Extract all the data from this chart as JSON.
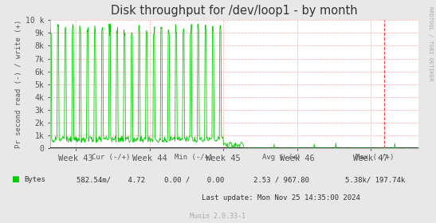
{
  "title": "Disk throughput for /dev/loop1 - by month",
  "ylabel": "Pr second read (-) / write (+)",
  "xlabel_ticks": [
    "Week 43",
    "Week 44",
    "Week 45",
    "Week 46",
    "Week 47"
  ],
  "xlabel_tick_positions": [
    0.07,
    0.27,
    0.47,
    0.67,
    0.87
  ],
  "ylim": [
    0,
    10000
  ],
  "ytick_vals": [
    0,
    1000,
    2000,
    3000,
    4000,
    5000,
    6000,
    7000,
    8000,
    9000,
    10000
  ],
  "ytick_labels": [
    "0",
    "1k",
    "2k",
    "3k",
    "4k",
    "5k",
    "6k",
    "7k",
    "8k",
    "9k",
    "10 k"
  ],
  "bg_color": "#e8e8e8",
  "plot_bg_color": "#ffffff",
  "grid_color": "#ffaaaa",
  "line_color": "#00cc00",
  "zero_line_color": "#000000",
  "title_color": "#333333",
  "label_color": "#555555",
  "legend_color": "#00cc00",
  "rdtool_label": "RRDTOOL / TOBI OETIKER",
  "dashed_red_vline_color": "#ff4444",
  "red_vline_x": 0.907,
  "munin_label": "Munin 2.0.33-1",
  "cur_header": "Cur (-/+)",
  "min_header": "Min (-/+)",
  "avg_header": "Avg (-/+)",
  "max_header": "Max (-/+)",
  "bytes_label": "Bytes",
  "cur_val": "582.54m/    4.72",
  "min_val": "0.00 /    0.00",
  "avg_val": "2.53 / 967.80",
  "max_val": "5.38k/ 197.74k",
  "last_update": "Last update: Mon Nov 25 14:35:00 2024"
}
